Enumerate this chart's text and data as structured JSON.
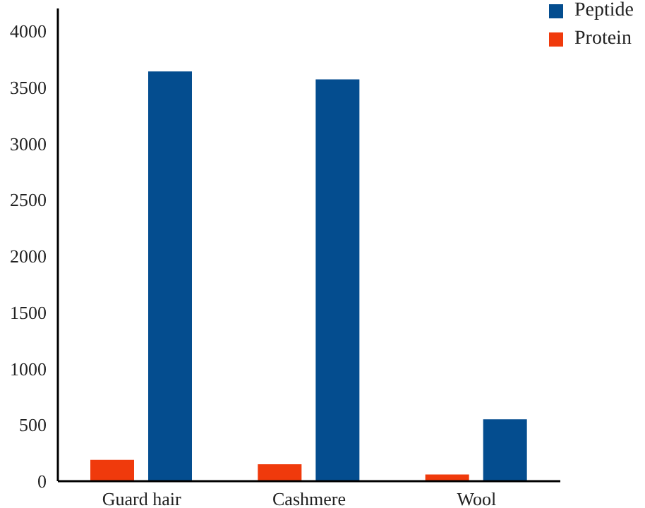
{
  "chart_data": {
    "type": "bar",
    "categories": [
      "Guard hair",
      "Cashmere",
      "Wool"
    ],
    "series": [
      {
        "name": "Protein",
        "color": "#f03a0c",
        "values": [
          190,
          150,
          60
        ]
      },
      {
        "name": "Peptide",
        "color": "#044d8f",
        "values": [
          3640,
          3570,
          550
        ]
      }
    ],
    "ylim": [
      0,
      4200
    ],
    "yticks": [
      0,
      500,
      1000,
      1500,
      2000,
      2500,
      3000,
      3500,
      4000
    ],
    "grid": false,
    "legend": "top right"
  }
}
